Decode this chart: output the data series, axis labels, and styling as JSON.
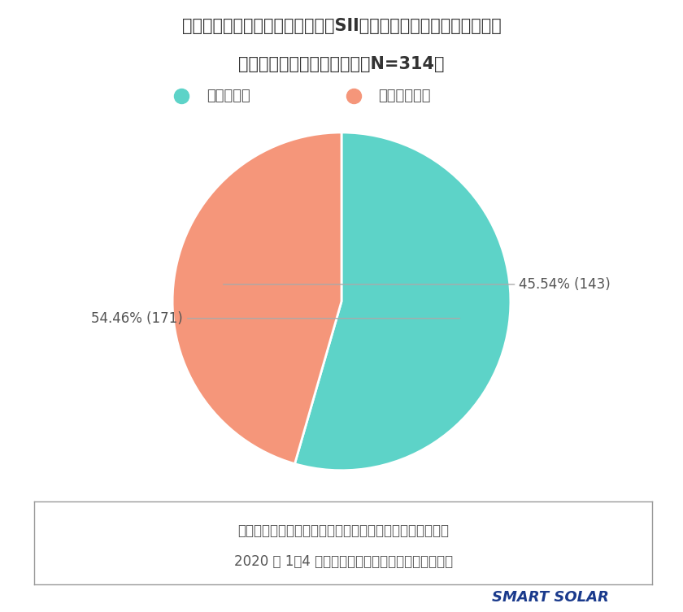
{
  "title_line1": "家庭用蓄電システムの導入に国（SII）や地方自治体の補助金制度が",
  "title_line2": "あるのをご存知でしたか？（N=314）",
  "slices": [
    54.46,
    45.54
  ],
  "counts": [
    171,
    143
  ],
  "labels": [
    "知っていた",
    "知らなかった"
  ],
  "colors": [
    "#5DD3C8",
    "#F5967A"
  ],
  "label_texts": [
    "54.46% (171)",
    "45.54% (143)"
  ],
  "legend_colors": [
    "#5DD3C8",
    "#F5967A"
  ],
  "note_line1": "当社が太陽光発電システムを設置されているお客様向けに",
  "note_line2": "2020 年 1～4 月に行った当社アンケート結果より。",
  "bg_color": "#FFFFFF",
  "title_color": "#333333",
  "text_color": "#555555",
  "brand_text": "SMART SOLAR",
  "brand_color": "#1a3a8c"
}
